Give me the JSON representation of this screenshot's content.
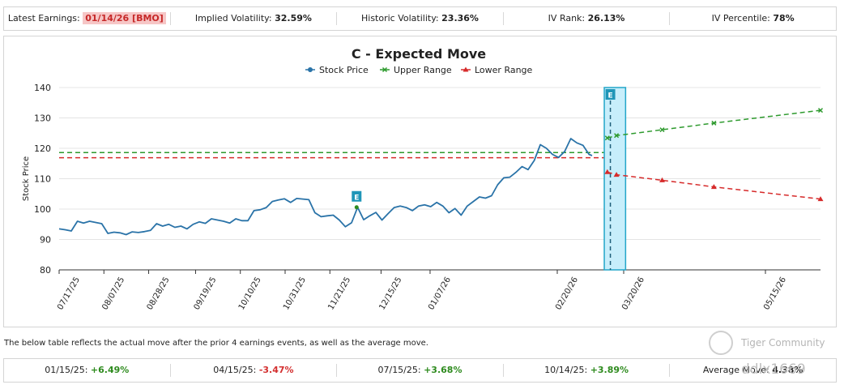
{
  "top_bar": {
    "earnings_label": "Latest Earnings:",
    "earnings_value": "01/14/26 [BMO]",
    "iv_label": "Implied Volatility:",
    "iv_value": "32.59%",
    "hv_label": "Historic Volatility:",
    "hv_value": "23.36%",
    "ivr_label": "IV Rank:",
    "ivr_value": "26.13%",
    "ivp_label": "IV Percentile:",
    "ivp_value": "78%"
  },
  "note": "The below table reflects the actual move after the prior 4 earnings events, as well as the average move.",
  "moves": [
    {
      "date": "01/15/25:",
      "value": "+6.49%",
      "dir": "pos"
    },
    {
      "date": "04/15/25:",
      "value": "-3.47%",
      "dir": "neg"
    },
    {
      "date": "07/15/25:",
      "value": "+3.68%",
      "dir": "pos"
    },
    {
      "date": "10/14/25:",
      "value": "+3.89%",
      "dir": "pos"
    }
  ],
  "average": {
    "label": "Average Move:",
    "value": "4.38%"
  },
  "watermark": {
    "name": "Tiger Community",
    "user": "ddlx1669"
  },
  "colors": {
    "stock": "#2a73a8",
    "upper": "#2e9a2e",
    "lower": "#d62b2b",
    "band_fill": "#c7eefb",
    "band_stroke": "#23a6c9",
    "earn_marker": "#1f96b8"
  },
  "chart_data": {
    "type": "line",
    "title": "C - Expected Move",
    "xlabel": "",
    "ylabel": "Stock Price",
    "ylim": [
      80,
      140
    ],
    "yticks": [
      80,
      90,
      100,
      110,
      120,
      130,
      140
    ],
    "xticks": [
      "07/17/25",
      "08/07/25",
      "08/28/25",
      "09/19/25",
      "10/10/25",
      "10/31/25",
      "11/21/25",
      "12/15/25",
      "01/07/26",
      "02/20/26",
      "03/20/26",
      "05/15/26"
    ],
    "legend": [
      "Stock Price",
      "Upper Range",
      "Lower Range"
    ],
    "earnings_marker_label": "E",
    "past_earnings_day": 88,
    "upcoming_earnings_day": 181,
    "band_days": [
      179,
      186
    ],
    "current_upper": 118.6,
    "current_lower": 116.9,
    "stock_series": [
      [
        0,
        93.5
      ],
      [
        2,
        93.2
      ],
      [
        4,
        92.8
      ],
      [
        6,
        96
      ],
      [
        8,
        95.4
      ],
      [
        10,
        96
      ],
      [
        12,
        95.6
      ],
      [
        14,
        95.2
      ],
      [
        16,
        92
      ],
      [
        18,
        92.4
      ],
      [
        20,
        92.2
      ],
      [
        22,
        91.6
      ],
      [
        24,
        92.5
      ],
      [
        26,
        92.3
      ],
      [
        28,
        92.6
      ],
      [
        30,
        93
      ],
      [
        32,
        95.2
      ],
      [
        34,
        94.4
      ],
      [
        36,
        95
      ],
      [
        38,
        94
      ],
      [
        40,
        94.4
      ],
      [
        42,
        93.5
      ],
      [
        44,
        95
      ],
      [
        46,
        95.8
      ],
      [
        48,
        95.3
      ],
      [
        50,
        96.8
      ],
      [
        52,
        96.4
      ],
      [
        54,
        96
      ],
      [
        56,
        95.4
      ],
      [
        58,
        96.8
      ],
      [
        60,
        96.2
      ],
      [
        62,
        96.2
      ],
      [
        64,
        99.5
      ],
      [
        66,
        99.8
      ],
      [
        68,
        100.5
      ],
      [
        70,
        102.5
      ],
      [
        72,
        103
      ],
      [
        74,
        103.4
      ],
      [
        76,
        102.2
      ],
      [
        78,
        103.5
      ],
      [
        80,
        103.3
      ],
      [
        82,
        103.1
      ],
      [
        84,
        98.8
      ],
      [
        86,
        97.5
      ],
      [
        88,
        97.8
      ],
      [
        90,
        98
      ],
      [
        92,
        96.4
      ],
      [
        94,
        94.2
      ],
      [
        96,
        95.5
      ],
      [
        98,
        100.6
      ],
      [
        100,
        96.5
      ],
      [
        102,
        97.8
      ],
      [
        104,
        98.9
      ],
      [
        106,
        96.4
      ],
      [
        108,
        98.5
      ],
      [
        110,
        100.5
      ],
      [
        112,
        101
      ],
      [
        114,
        100.5
      ],
      [
        116,
        99.5
      ],
      [
        118,
        101
      ],
      [
        120,
        101.4
      ],
      [
        122,
        100.8
      ],
      [
        124,
        102.2
      ],
      [
        126,
        101
      ],
      [
        128,
        98.8
      ],
      [
        130,
        100.2
      ],
      [
        132,
        98
      ],
      [
        134,
        101
      ],
      [
        136,
        102.5
      ],
      [
        138,
        104
      ],
      [
        140,
        103.6
      ],
      [
        142,
        104.4
      ],
      [
        144,
        108
      ],
      [
        146,
        110.3
      ],
      [
        148,
        110.5
      ],
      [
        150,
        112.1
      ],
      [
        152,
        114
      ],
      [
        154,
        113
      ],
      [
        156,
        116
      ],
      [
        158,
        121.2
      ],
      [
        160,
        120
      ],
      [
        162,
        118
      ],
      [
        164,
        117
      ],
      [
        166,
        119
      ],
      [
        168,
        123.2
      ],
      [
        170,
        121.8
      ],
      [
        172,
        121
      ],
      [
        174,
        118
      ],
      [
        175,
        117.6
      ]
    ],
    "upper_range": [
      [
        180,
        123.4
      ],
      [
        183,
        124.2
      ],
      [
        198,
        126.1
      ],
      [
        215,
        128.3
      ],
      [
        250,
        132.5
      ]
    ],
    "lower_range": [
      [
        180,
        112.2
      ],
      [
        183,
        111.3
      ],
      [
        198,
        109.5
      ],
      [
        215,
        107.3
      ],
      [
        250,
        103.3
      ]
    ]
  }
}
